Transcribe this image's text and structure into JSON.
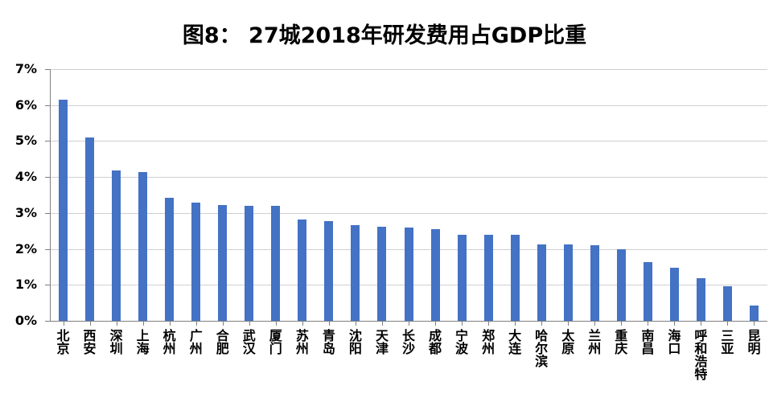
{
  "title": "图8： 27城2018年研发费用占GDP比重",
  "chart_data": {
    "type": "bar",
    "title": "图8： 27城2018年研发费用占GDP比重",
    "xlabel": "",
    "ylabel": "",
    "ylim": [
      0,
      7
    ],
    "yticks": [
      "0%",
      "1%",
      "2%",
      "3%",
      "4%",
      "5%",
      "6%",
      "7%"
    ],
    "grid": true,
    "legend": null,
    "bar_color": "#4472c4",
    "categories": [
      "北京",
      "西安",
      "深圳",
      "上海",
      "杭州",
      "广州",
      "合肥",
      "武汉",
      "厦门",
      "苏州",
      "青岛",
      "沈阳",
      "天津",
      "长沙",
      "成都",
      "宁波",
      "郑州",
      "大连",
      "哈尔滨",
      "太原",
      "兰州",
      "重庆",
      "南昌",
      "海口",
      "呼和浩特",
      "三亚",
      "昆明"
    ],
    "values": [
      6.16,
      5.1,
      4.19,
      4.14,
      3.42,
      3.29,
      3.22,
      3.2,
      3.2,
      2.82,
      2.78,
      2.66,
      2.62,
      2.6,
      2.55,
      2.4,
      2.4,
      2.4,
      2.13,
      2.13,
      2.1,
      1.99,
      1.63,
      1.48,
      1.19,
      0.96,
      0.43
    ],
    "unit": "%"
  }
}
